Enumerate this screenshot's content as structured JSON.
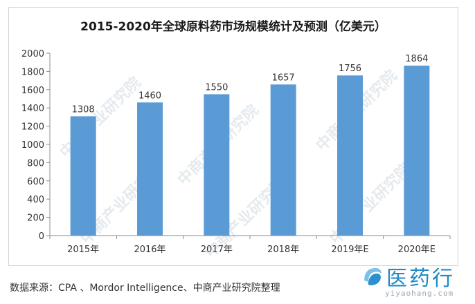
{
  "chart_data": {
    "type": "bar",
    "title": "2015-2020年全球原料药市场规模统计及预测（亿美元）",
    "categories": [
      "2015年",
      "2016年",
      "2017年",
      "2018年",
      "2019年E",
      "2020年E"
    ],
    "values": [
      1308,
      1460,
      1550,
      1657,
      1756,
      1864
    ],
    "ylim": [
      0,
      2000
    ],
    "yticks": [
      0,
      200,
      400,
      600,
      800,
      1000,
      1200,
      1400,
      1600,
      1800,
      2000
    ],
    "grid": false,
    "legend": "none",
    "bar_color": "#5b9bd5"
  },
  "watermark": {
    "text": "中商产业研究院"
  },
  "source_text": "数据来源：CPA 、Mordor Intelligence、中商产业研究院整理",
  "logo": {
    "text": "医药行",
    "url": "yiyaohang.com"
  }
}
